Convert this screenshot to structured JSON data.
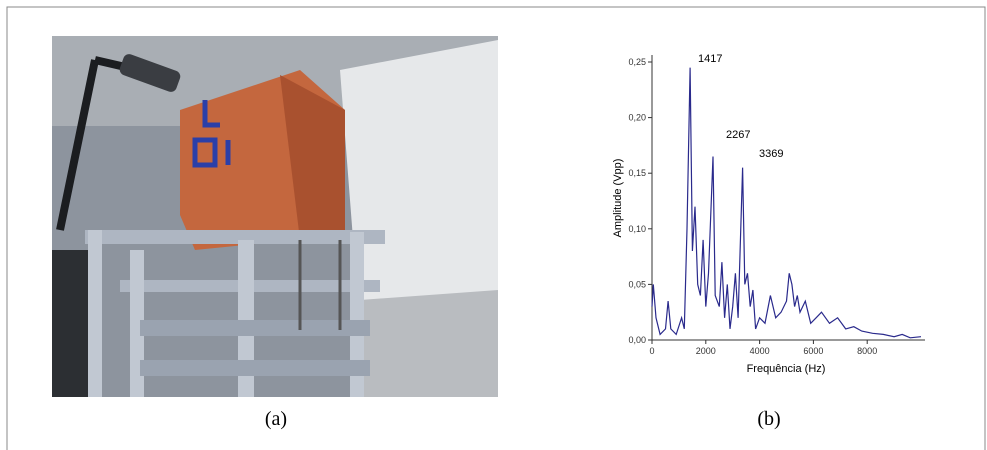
{
  "captions": [
    "(a)",
    "(b)"
  ],
  "chart_data": {
    "type": "line",
    "xlabel": "Frequência (Hz)",
    "ylabel": "Amplitude (Vpp)",
    "annotations": [
      "1417",
      "2267",
      "3369"
    ],
    "color": "#2a2a8c",
    "x": [
      0,
      50,
      150,
      300,
      500,
      600,
      700,
      900,
      1100,
      1200,
      1300,
      1417,
      1500,
      1600,
      1700,
      1800,
      1900,
      2000,
      2100,
      2267,
      2350,
      2500,
      2600,
      2700,
      2800,
      2900,
      3000,
      3100,
      3200,
      3369,
      3450,
      3550,
      3650,
      3750,
      3850,
      4000,
      4200,
      4400,
      4600,
      4800,
      5000,
      5100,
      5200,
      5300,
      5400,
      5500,
      5700,
      5900,
      6100,
      6300,
      6600,
      6900,
      7200,
      7500,
      7800,
      8200,
      8600,
      9000,
      9300,
      9600,
      10000
    ],
    "values": [
      0.03,
      0.05,
      0.02,
      0.005,
      0.01,
      0.035,
      0.01,
      0.005,
      0.02,
      0.01,
      0.1,
      0.245,
      0.08,
      0.12,
      0.05,
      0.04,
      0.09,
      0.03,
      0.06,
      0.165,
      0.04,
      0.03,
      0.07,
      0.02,
      0.05,
      0.01,
      0.03,
      0.06,
      0.02,
      0.155,
      0.05,
      0.06,
      0.03,
      0.045,
      0.01,
      0.02,
      0.015,
      0.04,
      0.02,
      0.025,
      0.035,
      0.06,
      0.05,
      0.03,
      0.04,
      0.025,
      0.035,
      0.015,
      0.02,
      0.025,
      0.015,
      0.02,
      0.01,
      0.012,
      0.008,
      0.006,
      0.005,
      0.003,
      0.005,
      0.002,
      0.003
    ],
    "xlim": [
      0,
      10000
    ],
    "xticks": [
      0,
      2000,
      4000,
      6000,
      8000
    ],
    "ylim": [
      0,
      0.25
    ],
    "yticks": [
      {
        "value": 0,
        "label": "0,00"
      },
      {
        "value": 0.05,
        "label": "0,05"
      },
      {
        "value": 0.1,
        "label": "0,10"
      },
      {
        "value": 0.15,
        "label": "0,15"
      },
      {
        "value": 0.2,
        "label": "0,20"
      },
      {
        "value": 0.25,
        "label": "0,25"
      }
    ]
  }
}
